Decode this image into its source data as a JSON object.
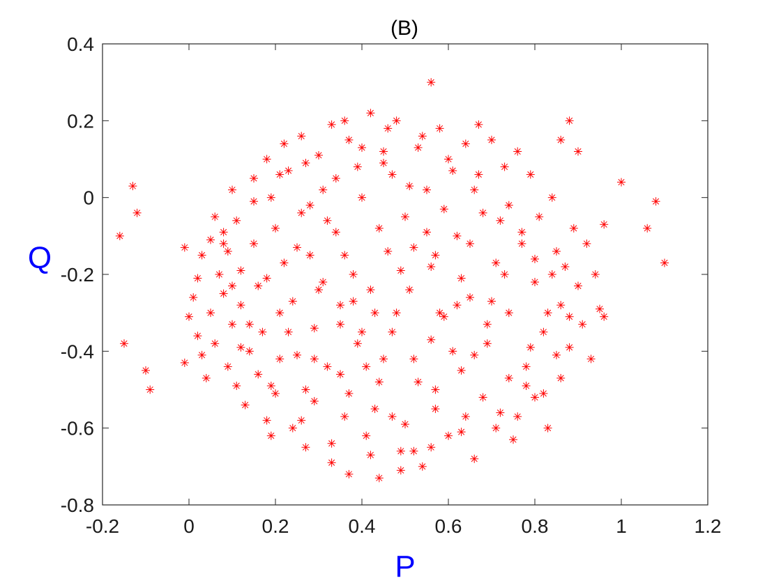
{
  "chart_data": {
    "type": "scatter",
    "title": "(B)",
    "xlabel": "P",
    "ylabel": "Q",
    "xlim": [
      -0.2,
      1.2
    ],
    "ylim": [
      -0.8,
      0.4
    ],
    "xticks": [
      -0.2,
      0,
      0.2,
      0.4,
      0.6,
      0.8,
      1,
      1.2
    ],
    "xtick_labels": [
      "-0.2",
      "0",
      "0.2",
      "0.4",
      "0.6",
      "0.8",
      "1",
      "1.2"
    ],
    "yticks": [
      -0.8,
      -0.6,
      -0.4,
      -0.2,
      0,
      0.2,
      0.4
    ],
    "ytick_labels": [
      "-0.8",
      "-0.6",
      "-0.4",
      "-0.2",
      "0",
      "0.2",
      "0.4"
    ],
    "grid": false,
    "marker": "asterisk",
    "marker_color": "#ff0000",
    "label_color": "#0000ff",
    "series": [
      {
        "points": [
          [
            -0.16,
            -0.1
          ],
          [
            -0.13,
            0.03
          ],
          [
            -0.12,
            -0.04
          ],
          [
            -0.15,
            -0.38
          ],
          [
            -0.1,
            -0.45
          ],
          [
            -0.09,
            -0.5
          ],
          [
            -0.01,
            -0.13
          ],
          [
            -0.01,
            -0.43
          ],
          [
            1.0,
            0.04
          ],
          [
            1.06,
            -0.08
          ],
          [
            1.08,
            -0.01
          ],
          [
            1.1,
            -0.17
          ],
          [
            0.56,
            0.3
          ],
          [
            0.88,
            0.2
          ],
          [
            0.9,
            0.12
          ],
          [
            0.86,
            0.15
          ],
          [
            0.96,
            -0.07
          ],
          [
            0.0,
            -0.31
          ],
          [
            0.01,
            -0.26
          ],
          [
            0.02,
            -0.21
          ],
          [
            0.03,
            -0.15
          ],
          [
            0.02,
            -0.36
          ],
          [
            0.03,
            -0.41
          ],
          [
            0.04,
            -0.47
          ],
          [
            0.05,
            -0.11
          ],
          [
            0.06,
            -0.05
          ],
          [
            0.05,
            -0.3
          ],
          [
            0.07,
            -0.2
          ],
          [
            0.06,
            -0.38
          ],
          [
            0.08,
            -0.09
          ],
          [
            0.09,
            -0.14
          ],
          [
            0.08,
            -0.25
          ],
          [
            0.1,
            -0.33
          ],
          [
            0.09,
            -0.44
          ],
          [
            0.1,
            0.02
          ],
          [
            0.11,
            -0.06
          ],
          [
            0.12,
            -0.19
          ],
          [
            0.12,
            -0.28
          ],
          [
            0.11,
            -0.49
          ],
          [
            0.13,
            -0.54
          ],
          [
            0.14,
            -0.4
          ],
          [
            0.15,
            0.05
          ],
          [
            0.15,
            -0.12
          ],
          [
            0.16,
            -0.23
          ],
          [
            0.17,
            -0.35
          ],
          [
            0.16,
            -0.46
          ],
          [
            0.18,
            -0.58
          ],
          [
            0.19,
            -0.62
          ],
          [
            0.18,
            0.1
          ],
          [
            0.2,
            -0.08
          ],
          [
            0.21,
            -0.3
          ],
          [
            0.2,
            -0.51
          ],
          [
            0.22,
            0.14
          ],
          [
            0.23,
            0.07
          ],
          [
            0.22,
            -0.17
          ],
          [
            0.24,
            -0.27
          ],
          [
            0.25,
            -0.41
          ],
          [
            0.24,
            -0.6
          ],
          [
            0.26,
            0.16
          ],
          [
            0.26,
            -0.04
          ],
          [
            0.27,
            -0.65
          ],
          [
            0.28,
            -0.15
          ],
          [
            0.29,
            -0.34
          ],
          [
            0.29,
            -0.53
          ],
          [
            0.3,
            0.11
          ],
          [
            0.31,
            0.02
          ],
          [
            0.31,
            -0.22
          ],
          [
            0.32,
            -0.44
          ],
          [
            0.33,
            -0.69
          ],
          [
            0.33,
            0.19
          ],
          [
            0.34,
            -0.09
          ],
          [
            0.35,
            -0.28
          ],
          [
            0.36,
            -0.57
          ],
          [
            0.37,
            -0.72
          ],
          [
            0.37,
            0.15
          ],
          [
            0.38,
            -0.2
          ],
          [
            0.39,
            -0.38
          ],
          [
            0.4,
            0.0
          ],
          [
            0.41,
            -0.62
          ],
          [
            0.42,
            0.22
          ],
          [
            0.43,
            -0.3
          ],
          [
            0.44,
            -0.48
          ],
          [
            0.44,
            -0.73
          ],
          [
            0.45,
            0.09
          ],
          [
            0.46,
            -0.14
          ],
          [
            0.47,
            -0.35
          ],
          [
            0.48,
            0.2
          ],
          [
            0.49,
            -0.66
          ],
          [
            0.5,
            -0.05
          ],
          [
            0.51,
            -0.24
          ],
          [
            0.52,
            -0.42
          ],
          [
            0.53,
            0.13
          ],
          [
            0.54,
            -0.7
          ],
          [
            0.55,
            0.02
          ],
          [
            0.56,
            -0.18
          ],
          [
            0.57,
            -0.55
          ],
          [
            0.58,
            0.18
          ],
          [
            0.59,
            -0.31
          ],
          [
            0.6,
            -0.62
          ],
          [
            0.61,
            0.07
          ],
          [
            0.62,
            -0.1
          ],
          [
            0.63,
            -0.45
          ],
          [
            0.64,
            0.14
          ],
          [
            0.65,
            -0.26
          ],
          [
            0.66,
            -0.68
          ],
          [
            0.67,
            0.19
          ],
          [
            0.68,
            -0.04
          ],
          [
            0.69,
            -0.38
          ],
          [
            0.7,
            0.15
          ],
          [
            0.71,
            -0.17
          ],
          [
            0.72,
            -0.56
          ],
          [
            0.73,
            0.08
          ],
          [
            0.74,
            -0.3
          ],
          [
            0.75,
            -0.63
          ],
          [
            0.76,
            0.12
          ],
          [
            0.77,
            -0.09
          ],
          [
            0.78,
            -0.44
          ],
          [
            0.79,
            0.06
          ],
          [
            0.8,
            -0.22
          ],
          [
            0.8,
            -0.52
          ],
          [
            0.81,
            -0.05
          ],
          [
            0.82,
            -0.35
          ],
          [
            0.83,
            -0.6
          ],
          [
            0.84,
            0.0
          ],
          [
            0.85,
            -0.14
          ],
          [
            0.86,
            -0.28
          ],
          [
            0.86,
            -0.47
          ],
          [
            0.87,
            -0.18
          ],
          [
            0.88,
            -0.39
          ],
          [
            0.89,
            -0.08
          ],
          [
            0.9,
            -0.23
          ],
          [
            0.91,
            -0.33
          ],
          [
            0.92,
            -0.12
          ],
          [
            0.93,
            -0.42
          ],
          [
            0.94,
            -0.2
          ],
          [
            0.95,
            -0.29
          ],
          [
            0.96,
            -0.31
          ],
          [
            0.4,
            -0.35
          ],
          [
            0.38,
            -0.27
          ],
          [
            0.47,
            -0.57
          ],
          [
            0.52,
            -0.66
          ],
          [
            0.58,
            -0.3
          ],
          [
            0.66,
            -0.41
          ],
          [
            0.74,
            -0.47
          ],
          [
            0.82,
            -0.51
          ],
          [
            0.79,
            -0.39
          ],
          [
            0.7,
            -0.27
          ],
          [
            0.63,
            -0.21
          ],
          [
            0.55,
            -0.09
          ],
          [
            0.47,
            0.06
          ],
          [
            0.4,
            0.13
          ],
          [
            0.34,
            0.05
          ],
          [
            0.28,
            -0.02
          ],
          [
            0.21,
            0.06
          ],
          [
            0.15,
            -0.01
          ],
          [
            0.1,
            -0.23
          ],
          [
            0.14,
            -0.33
          ],
          [
            0.21,
            -0.42
          ],
          [
            0.27,
            -0.5
          ],
          [
            0.35,
            -0.46
          ],
          [
            0.43,
            -0.55
          ],
          [
            0.5,
            -0.59
          ],
          [
            0.57,
            -0.5
          ],
          [
            0.63,
            -0.61
          ],
          [
            0.68,
            -0.52
          ],
          [
            0.76,
            -0.57
          ],
          [
            0.85,
            -0.41
          ],
          [
            0.88,
            -0.31
          ],
          [
            0.84,
            -0.2
          ],
          [
            0.77,
            -0.12
          ],
          [
            0.72,
            -0.06
          ],
          [
            0.66,
            0.02
          ],
          [
            0.6,
            0.1
          ],
          [
            0.54,
            0.16
          ],
          [
            0.46,
            0.18
          ],
          [
            0.39,
            0.08
          ],
          [
            0.32,
            -0.06
          ],
          [
            0.25,
            -0.13
          ],
          [
            0.18,
            -0.21
          ],
          [
            0.12,
            -0.39
          ],
          [
            0.19,
            -0.49
          ],
          [
            0.26,
            -0.58
          ],
          [
            0.33,
            -0.64
          ],
          [
            0.42,
            -0.67
          ],
          [
            0.49,
            -0.71
          ],
          [
            0.56,
            -0.65
          ],
          [
            0.64,
            -0.57
          ],
          [
            0.71,
            -0.6
          ],
          [
            0.78,
            -0.49
          ],
          [
            0.83,
            -0.3
          ],
          [
            0.8,
            -0.16
          ],
          [
            0.74,
            -0.02
          ],
          [
            0.67,
            0.06
          ],
          [
            0.59,
            -0.03
          ],
          [
            0.51,
            0.03
          ],
          [
            0.44,
            -0.08
          ],
          [
            0.36,
            -0.15
          ],
          [
            0.3,
            -0.24
          ],
          [
            0.23,
            -0.35
          ],
          [
            0.29,
            -0.42
          ],
          [
            0.37,
            -0.51
          ],
          [
            0.45,
            -0.42
          ],
          [
            0.53,
            -0.48
          ],
          [
            0.61,
            -0.4
          ],
          [
            0.69,
            -0.33
          ],
          [
            0.73,
            -0.2
          ],
          [
            0.65,
            -0.12
          ],
          [
            0.57,
            -0.15
          ],
          [
            0.49,
            -0.19
          ],
          [
            0.42,
            -0.24
          ],
          [
            0.35,
            -0.33
          ],
          [
            0.41,
            -0.44
          ],
          [
            0.48,
            -0.3
          ],
          [
            0.56,
            -0.37
          ],
          [
            0.62,
            -0.28
          ],
          [
            0.52,
            -0.13
          ],
          [
            0.45,
            0.12
          ],
          [
            0.36,
            0.2
          ],
          [
            0.27,
            0.09
          ],
          [
            0.19,
            0.0
          ],
          [
            0.08,
            -0.12
          ]
        ]
      }
    ]
  }
}
